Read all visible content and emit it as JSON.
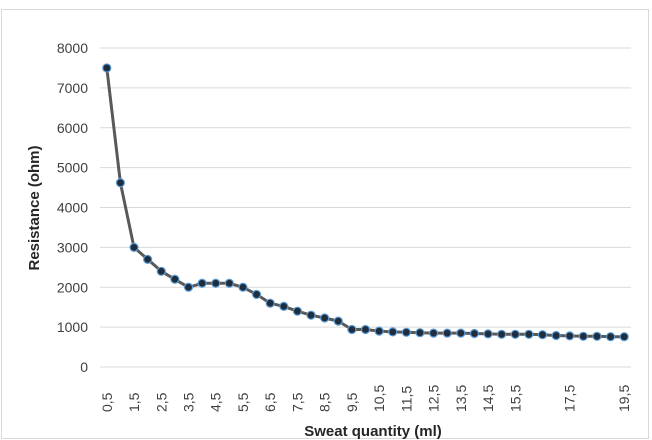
{
  "chart_data": {
    "type": "line",
    "title": "",
    "xlabel": "Sweat quantity (ml)",
    "ylabel": "Resistance (ohm)",
    "ylim": [
      0,
      8000
    ],
    "y_ticks": [
      "0",
      "1000",
      "2000",
      "3000",
      "4000",
      "5000",
      "6000",
      "7000",
      "8000"
    ],
    "categories": [
      "0,5",
      "1",
      "1,5",
      "2",
      "2,5",
      "3",
      "3,5",
      "4",
      "4,5",
      "5",
      "5,5",
      "6",
      "6,5",
      "7",
      "7,5",
      "8",
      "8,5",
      "9",
      "9,5",
      "10",
      "10,5",
      "11",
      "11,5",
      "12",
      "12,5",
      "13",
      "13,5",
      "14",
      "14,5",
      "15",
      "15,5",
      "16",
      "16,5",
      "17",
      "17,5",
      "18",
      "18,5",
      "19",
      "19,5"
    ],
    "x_tick_labels": [
      "0,5",
      "1,5",
      "2,5",
      "3,5",
      "4,5",
      "5,5",
      "6,5",
      "7,5",
      "8,5",
      "9,5",
      "10,5",
      "11,5",
      "12,5",
      "13,5",
      "14,5",
      "15,5",
      "17,5",
      "19,5"
    ],
    "series": [
      {
        "values": [
          7500,
          4620,
          3000,
          2700,
          2400,
          2200,
          2000,
          2100,
          2100,
          2100,
          2000,
          1820,
          1600,
          1520,
          1400,
          1300,
          1230,
          1150,
          940,
          940,
          900,
          880,
          870,
          860,
          850,
          850,
          850,
          840,
          830,
          820,
          820,
          820,
          810,
          790,
          780,
          770,
          770,
          760,
          760
        ]
      }
    ],
    "grid": true,
    "legend": "none",
    "colors": {
      "line": "#595959",
      "marker_fill": "#1f2d3d",
      "marker_edge": "#5b9bd5",
      "grid": "#d9d9d9"
    }
  }
}
